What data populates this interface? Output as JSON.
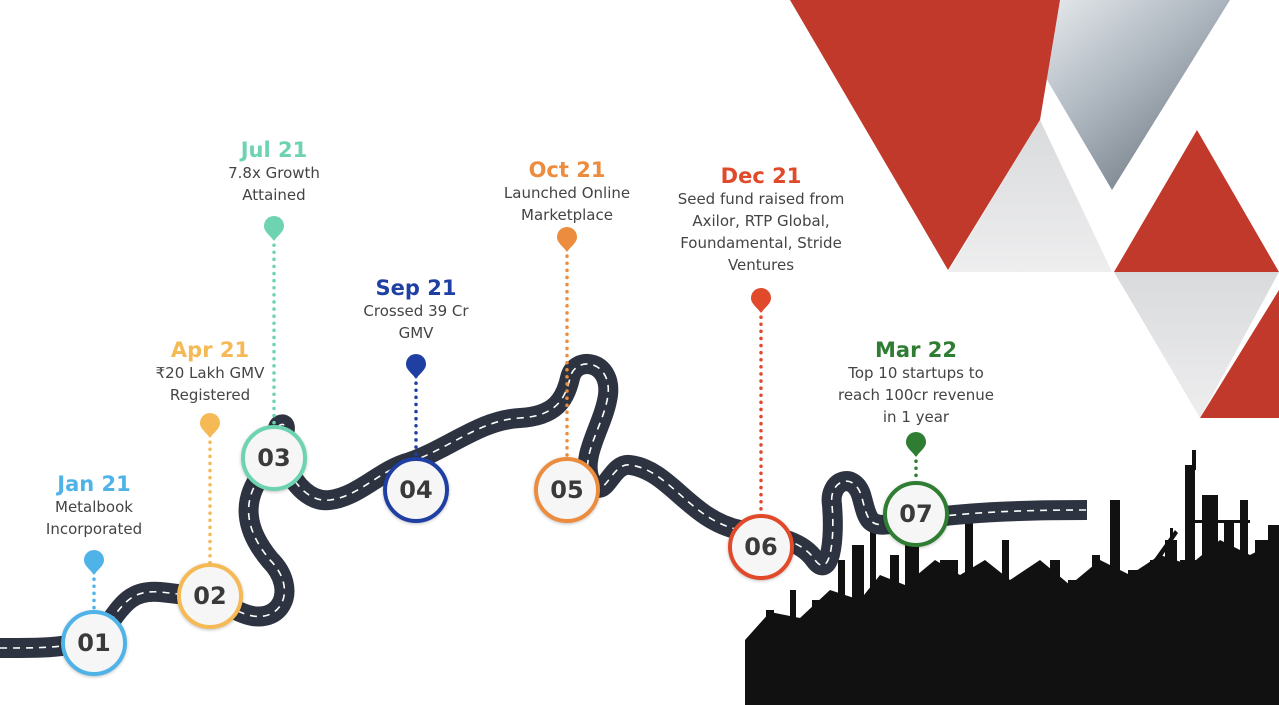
{
  "milestones": [
    {
      "number": "01",
      "date": "Jan 21",
      "lines": [
        "Metalbook",
        "Incorporated"
      ],
      "color": "#4fb3e8"
    },
    {
      "number": "02",
      "date": "Apr 21",
      "lines": [
        "₹20 Lakh GMV",
        "Registered"
      ],
      "color": "#f5b955"
    },
    {
      "number": "03",
      "date": "Jul 21",
      "lines": [
        "7.8x Growth",
        "Attained"
      ],
      "color": "#6dd3b0"
    },
    {
      "number": "04",
      "date": "Sep 21",
      "lines": [
        "Crossed 39 Cr",
        "GMV"
      ],
      "color": "#1f3fa3"
    },
    {
      "number": "05",
      "date": "Oct 21",
      "lines": [
        "Launched Online",
        "Marketplace"
      ],
      "color": "#ec8c3e"
    },
    {
      "number": "06",
      "date": "Dec 21",
      "lines": [
        "Seed fund raised from",
        "Axilor, RTP Global,",
        "Foundamental, Stride",
        "Ventures"
      ],
      "color": "#e04a2a"
    },
    {
      "number": "07",
      "date": "Mar 22",
      "lines": [
        "Top 10 startups to",
        "reach 100cr revenue",
        "in 1 year"
      ],
      "color": "#2e7d32"
    }
  ]
}
